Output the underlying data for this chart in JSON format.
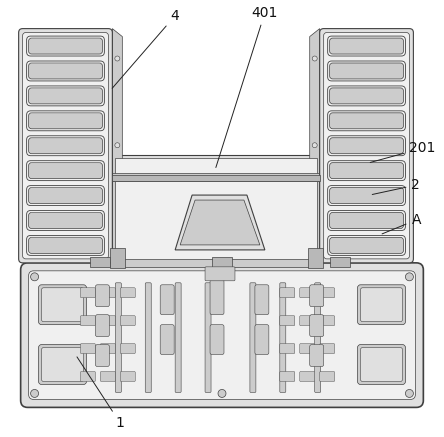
{
  "bg": "#ffffff",
  "lc": "#404040",
  "lc2": "#555555",
  "gray1": "#f0f0f0",
  "gray2": "#e0e0e0",
  "gray3": "#cccccc",
  "gray4": "#b8b8b8",
  "gray5": "#a0a0a0",
  "fig_w": 4.44,
  "fig_h": 4.37,
  "dpi": 100
}
